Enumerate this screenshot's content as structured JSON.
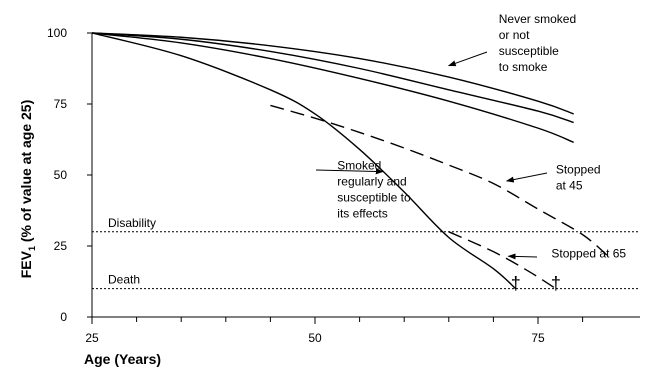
{
  "chart_data": {
    "type": "line",
    "title": "",
    "xlabel": "Age (Years)",
    "ylabel": {
      "main": "FEV",
      "subscript": "1",
      "rest": " (% of value at age 25)"
    },
    "xlim": [
      25,
      85
    ],
    "ylim": [
      0,
      100
    ],
    "x_ticks": [
      25,
      50,
      75
    ],
    "y_ticks": [
      0,
      25,
      50,
      75,
      100
    ],
    "grid": false,
    "series": [
      {
        "style": "solid",
        "points": [
          [
            25,
            100
          ],
          [
            35,
            98.5
          ],
          [
            45,
            95.5
          ],
          [
            55,
            91
          ],
          [
            65,
            84.5
          ],
          [
            75,
            76
          ],
          [
            79,
            71.5
          ]
        ]
      },
      {
        "style": "solid",
        "points": [
          [
            25,
            100
          ],
          [
            35,
            97.8
          ],
          [
            45,
            93.5
          ],
          [
            55,
            87.5
          ],
          [
            65,
            80
          ],
          [
            75,
            72.5
          ],
          [
            79,
            68.5
          ]
        ]
      },
      {
        "style": "solid",
        "points": [
          [
            25,
            100
          ],
          [
            35,
            96.5
          ],
          [
            45,
            91
          ],
          [
            55,
            84
          ],
          [
            65,
            76
          ],
          [
            75,
            66.5
          ],
          [
            79,
            61.5
          ]
        ]
      },
      {
        "style": "solid",
        "points": [
          [
            25,
            100
          ],
          [
            35,
            92
          ],
          [
            45,
            80
          ],
          [
            50,
            71.5
          ],
          [
            55,
            59
          ],
          [
            60,
            44
          ],
          [
            65,
            28
          ],
          [
            70,
            17
          ],
          [
            72.5,
            10
          ]
        ]
      },
      {
        "style": "dashed",
        "points": [
          [
            45,
            74.5
          ],
          [
            50,
            70
          ],
          [
            55,
            65
          ],
          [
            60,
            59.5
          ],
          [
            65,
            53.5
          ],
          [
            70,
            47
          ],
          [
            75,
            38
          ],
          [
            80,
            29
          ],
          [
            83,
            21
          ]
        ]
      },
      {
        "style": "dashed",
        "points": [
          [
            65,
            30
          ],
          [
            70,
            23
          ],
          [
            74,
            16
          ],
          [
            77,
            10
          ]
        ]
      }
    ],
    "reference_lines": [
      {
        "y": 30,
        "label": "Disability"
      },
      {
        "y": 10,
        "label": "Death"
      }
    ],
    "annotations": [
      {
        "lines": [
          "Never smoked",
          "or not",
          "susceptible",
          "to smoke"
        ],
        "x": 70.6,
        "y": 103.5,
        "arrow_to": [
          65,
          88.5
        ]
      },
      {
        "lines": [
          "Smoked",
          "regularly and",
          "susceptible to",
          "its effects"
        ],
        "x": 52.5,
        "y": 52,
        "arrow_to": [
          57.6,
          51.2
        ]
      },
      {
        "lines": [
          "Stopped",
          "at 45"
        ],
        "x": 77,
        "y": 50.5,
        "arrow_to": [
          71.5,
          47.9
        ]
      },
      {
        "lines": [
          "Stopped at 65"
        ],
        "x": 76.5,
        "y": 21,
        "arrow_to": [
          71.7,
          21.4
        ]
      }
    ],
    "markers": [
      {
        "symbol": "†",
        "x": 72.5,
        "y": 10
      },
      {
        "symbol": "†",
        "x": 77,
        "y": 10
      }
    ]
  }
}
